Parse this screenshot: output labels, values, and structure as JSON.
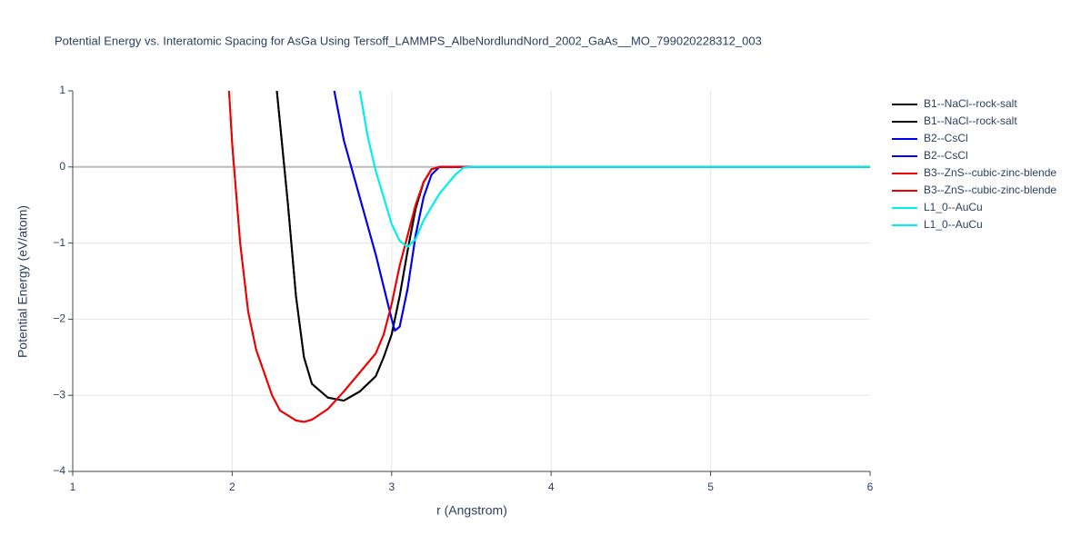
{
  "chart_data": {
    "type": "line",
    "title": "Potential Energy vs. Interatomic Spacing for AsGa Using Tersoff_LAMMPS_AlbeNordlundNord_2002_GaAs__MO_799020228312_003",
    "x_label": "r (Angstrom)",
    "y_label": "Potential Energy (eV/atom)",
    "xlim": [
      1,
      6
    ],
    "ylim": [
      -4,
      1
    ],
    "xticks": [
      1,
      2,
      3,
      4,
      5,
      6
    ],
    "yticks": [
      {
        "value": -4,
        "label": "−4"
      },
      {
        "value": -3,
        "label": "−3"
      },
      {
        "value": -2,
        "label": "−2"
      },
      {
        "value": -1,
        "label": "−1"
      },
      0,
      1
    ],
    "grid": true,
    "series": [
      {
        "name": "B1--NaCl--rock-salt",
        "color": "#000000",
        "x": [
          2.28,
          2.35,
          2.4,
          2.45,
          2.5,
          2.6,
          2.7,
          2.8,
          2.9,
          2.95,
          3.0,
          3.05,
          3.1,
          3.15,
          3.2,
          3.25,
          3.3,
          6
        ],
        "values": [
          1,
          -0.5,
          -1.7,
          -2.5,
          -2.85,
          -3.03,
          -3.07,
          -2.95,
          -2.75,
          -2.5,
          -2.2,
          -1.7,
          -1.1,
          -0.55,
          -0.2,
          -0.03,
          0,
          0
        ]
      },
      {
        "name": "B1--NaCl--rock-salt",
        "color": "#000000",
        "x": [
          2.28,
          2.35,
          2.4,
          2.45,
          2.5,
          2.6,
          2.7,
          2.8,
          2.9,
          2.95,
          3.0,
          3.05,
          3.1,
          3.15,
          3.2,
          3.25,
          3.3,
          6
        ],
        "values": [
          1,
          -0.5,
          -1.7,
          -2.5,
          -2.85,
          -3.03,
          -3.07,
          -2.95,
          -2.75,
          -2.5,
          -2.2,
          -1.7,
          -1.1,
          -0.55,
          -0.2,
          -0.03,
          0,
          0
        ]
      },
      {
        "name": "B2--CsCl",
        "color": "#0000ee",
        "x": [
          2.64,
          2.7,
          2.8,
          2.9,
          3.0,
          3.02,
          3.05,
          3.1,
          3.15,
          3.2,
          3.25,
          3.3,
          6
        ],
        "values": [
          1,
          0.35,
          -0.4,
          -1.15,
          -2.0,
          -2.15,
          -2.1,
          -1.6,
          -0.9,
          -0.4,
          -0.1,
          0,
          0
        ]
      },
      {
        "name": "B2--CsCl",
        "color": "#0000ee",
        "x": [
          2.64,
          2.7,
          2.8,
          2.9,
          3.0,
          3.02,
          3.05,
          3.1,
          3.15,
          3.2,
          3.25,
          3.3,
          6
        ],
        "values": [
          1,
          0.35,
          -0.4,
          -1.15,
          -2.0,
          -2.15,
          -2.1,
          -1.6,
          -0.9,
          -0.4,
          -0.1,
          0,
          0
        ]
      },
      {
        "name": "B3--ZnS--cubic-zinc-blende",
        "color": "#ee0000",
        "x": [
          1.98,
          2.0,
          2.05,
          2.1,
          2.15,
          2.2,
          2.25,
          2.3,
          2.4,
          2.45,
          2.5,
          2.6,
          2.7,
          2.8,
          2.9,
          2.95,
          3.0,
          3.05,
          3.1,
          3.15,
          3.2,
          3.25,
          3.3,
          6
        ],
        "values": [
          1,
          0.3,
          -1.0,
          -1.9,
          -2.4,
          -2.7,
          -3.0,
          -3.2,
          -3.33,
          -3.35,
          -3.32,
          -3.18,
          -2.95,
          -2.7,
          -2.45,
          -2.2,
          -1.8,
          -1.3,
          -0.9,
          -0.5,
          -0.2,
          -0.03,
          0,
          0
        ]
      },
      {
        "name": "B3--ZnS--cubic-zinc-blende",
        "color": "#ee0000",
        "x": [
          1.98,
          2.0,
          2.05,
          2.1,
          2.15,
          2.2,
          2.25,
          2.3,
          2.4,
          2.45,
          2.5,
          2.6,
          2.7,
          2.8,
          2.9,
          2.95,
          3.0,
          3.05,
          3.1,
          3.15,
          3.2,
          3.25,
          3.3,
          6
        ],
        "values": [
          1,
          0.3,
          -1.0,
          -1.9,
          -2.4,
          -2.7,
          -3.0,
          -3.2,
          -3.33,
          -3.35,
          -3.32,
          -3.18,
          -2.95,
          -2.7,
          -2.45,
          -2.2,
          -1.8,
          -1.3,
          -0.9,
          -0.5,
          -0.2,
          -0.03,
          0,
          0
        ]
      },
      {
        "name": "L1_0--AuCu",
        "color": "#00eeee",
        "x": [
          2.8,
          2.85,
          2.9,
          2.95,
          3.0,
          3.05,
          3.1,
          3.15,
          3.2,
          3.3,
          3.4,
          3.45,
          3.5,
          6
        ],
        "values": [
          1,
          0.4,
          -0.05,
          -0.4,
          -0.75,
          -0.97,
          -1.05,
          -0.95,
          -0.7,
          -0.35,
          -0.1,
          -0.01,
          0,
          0
        ]
      },
      {
        "name": "L1_0--AuCu",
        "color": "#00eeee",
        "x": [
          2.8,
          2.85,
          2.9,
          2.95,
          3.0,
          3.05,
          3.1,
          3.15,
          3.2,
          3.3,
          3.4,
          3.45,
          3.5,
          6
        ],
        "values": [
          1,
          0.4,
          -0.05,
          -0.4,
          -0.75,
          -0.97,
          -1.05,
          -0.95,
          -0.7,
          -0.35,
          -0.1,
          -0.01,
          0,
          0
        ]
      }
    ]
  }
}
